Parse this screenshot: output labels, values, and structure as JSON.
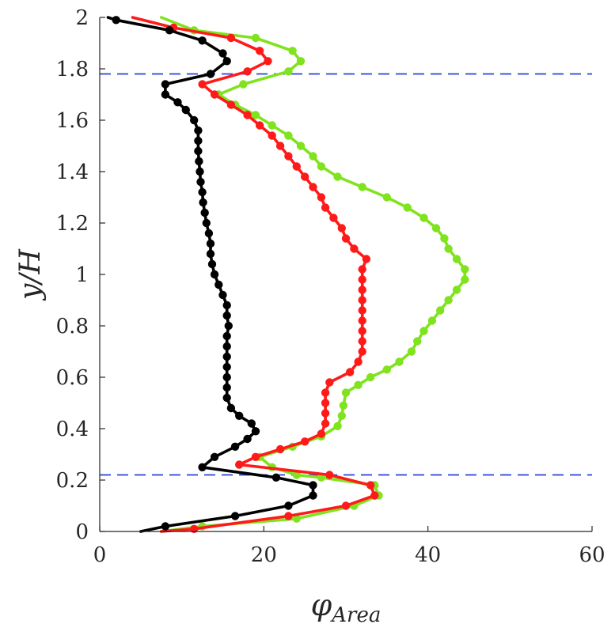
{
  "chart_data": {
    "type": "line",
    "xlabel": "φ",
    "xlabel_sub": "Area",
    "ylabel": "y/H",
    "xlim": [
      0,
      60
    ],
    "ylim": [
      0,
      2
    ],
    "xticks": [
      0,
      20,
      40,
      60
    ],
    "yticks": [
      0,
      0.2,
      0.4,
      0.6,
      0.8,
      1,
      1.2,
      1.4,
      1.6,
      1.8,
      2
    ],
    "xtick_labels": [
      "0",
      "20",
      "40",
      "60"
    ],
    "ytick_labels": [
      "0",
      "0.2",
      "0.4",
      "0.6",
      "0.8",
      "1",
      "1.2",
      "1.4",
      "1.6",
      "1.8",
      "2"
    ],
    "grid": false,
    "reference_lines": [
      {
        "orientation": "horizontal",
        "y": 1.78,
        "style": "dashed",
        "color": "#2b3fd9"
      },
      {
        "orientation": "horizontal",
        "y": 0.22,
        "style": "dashed",
        "color": "#2b3fd9"
      }
    ],
    "series": [
      {
        "color": "#7fe31d",
        "marker": "circle",
        "points": [
          [
            7.5,
            0.0
          ],
          [
            12.5,
            0.02
          ],
          [
            24.0,
            0.05
          ],
          [
            31.0,
            0.1
          ],
          [
            34.0,
            0.14
          ],
          [
            33.5,
            0.18
          ],
          [
            27.0,
            0.21
          ],
          [
            24.0,
            0.22
          ],
          [
            21.0,
            0.25
          ],
          [
            19.5,
            0.29
          ],
          [
            23.5,
            0.33
          ],
          [
            27.0,
            0.37
          ],
          [
            29.0,
            0.41
          ],
          [
            29.5,
            0.45
          ],
          [
            29.7,
            0.49
          ],
          [
            30.0,
            0.54
          ],
          [
            31.5,
            0.57
          ],
          [
            33.0,
            0.6
          ],
          [
            35.0,
            0.63
          ],
          [
            36.5,
            0.66
          ],
          [
            38.0,
            0.7
          ],
          [
            38.7,
            0.74
          ],
          [
            39.5,
            0.78
          ],
          [
            40.5,
            0.82
          ],
          [
            41.5,
            0.86
          ],
          [
            42.5,
            0.9
          ],
          [
            43.5,
            0.94
          ],
          [
            44.5,
            0.98
          ],
          [
            44.5,
            1.02
          ],
          [
            43.5,
            1.06
          ],
          [
            42.5,
            1.1
          ],
          [
            42.0,
            1.14
          ],
          [
            41.0,
            1.18
          ],
          [
            39.5,
            1.22
          ],
          [
            37.5,
            1.26
          ],
          [
            35.0,
            1.3
          ],
          [
            32.0,
            1.34
          ],
          [
            29.0,
            1.38
          ],
          [
            27.0,
            1.42
          ],
          [
            26.0,
            1.46
          ],
          [
            24.5,
            1.5
          ],
          [
            23.0,
            1.54
          ],
          [
            21.0,
            1.58
          ],
          [
            19.0,
            1.62
          ],
          [
            16.5,
            1.66
          ],
          [
            14.5,
            1.7
          ],
          [
            17.5,
            1.74
          ],
          [
            23.0,
            1.79
          ],
          [
            24.5,
            1.83
          ],
          [
            23.5,
            1.87
          ],
          [
            19.0,
            1.92
          ],
          [
            11.5,
            1.95
          ],
          [
            7.5,
            2.0
          ]
        ]
      },
      {
        "color": "#ff1a1a",
        "marker": "circle",
        "points": [
          [
            7.5,
            0.0
          ],
          [
            11.5,
            0.01
          ],
          [
            23.0,
            0.06
          ],
          [
            30.0,
            0.1
          ],
          [
            33.5,
            0.14
          ],
          [
            33.0,
            0.18
          ],
          [
            28.0,
            0.22
          ],
          [
            17.0,
            0.26
          ],
          [
            19.0,
            0.29
          ],
          [
            22.0,
            0.32
          ],
          [
            25.0,
            0.35
          ],
          [
            27.0,
            0.38
          ],
          [
            27.5,
            0.42
          ],
          [
            27.5,
            0.46
          ],
          [
            27.5,
            0.5
          ],
          [
            27.5,
            0.54
          ],
          [
            28.0,
            0.58
          ],
          [
            30.5,
            0.62
          ],
          [
            31.5,
            0.66
          ],
          [
            32.0,
            0.7
          ],
          [
            32.0,
            0.74
          ],
          [
            32.0,
            0.78
          ],
          [
            32.0,
            0.82
          ],
          [
            32.0,
            0.86
          ],
          [
            32.0,
            0.9
          ],
          [
            32.0,
            0.94
          ],
          [
            32.0,
            0.98
          ],
          [
            32.0,
            1.02
          ],
          [
            32.5,
            1.06
          ],
          [
            31.0,
            1.1
          ],
          [
            30.0,
            1.14
          ],
          [
            29.5,
            1.18
          ],
          [
            28.5,
            1.22
          ],
          [
            27.5,
            1.26
          ],
          [
            27.0,
            1.3
          ],
          [
            26.0,
            1.34
          ],
          [
            25.0,
            1.38
          ],
          [
            24.0,
            1.42
          ],
          [
            23.0,
            1.46
          ],
          [
            22.0,
            1.5
          ],
          [
            21.0,
            1.54
          ],
          [
            19.5,
            1.58
          ],
          [
            18.0,
            1.62
          ],
          [
            16.0,
            1.66
          ],
          [
            14.0,
            1.7
          ],
          [
            12.5,
            1.74
          ],
          [
            18.0,
            1.79
          ],
          [
            20.5,
            1.83
          ],
          [
            19.5,
            1.87
          ],
          [
            16.0,
            1.92
          ],
          [
            9.0,
            1.96
          ],
          [
            4.0,
            2.0
          ]
        ]
      },
      {
        "color": "#000000",
        "marker": "circle",
        "points": [
          [
            5.0,
            0.0
          ],
          [
            8.0,
            0.02
          ],
          [
            16.5,
            0.06
          ],
          [
            23.0,
            0.1
          ],
          [
            26.0,
            0.14
          ],
          [
            26.0,
            0.18
          ],
          [
            21.5,
            0.21
          ],
          [
            12.5,
            0.25
          ],
          [
            14.0,
            0.29
          ],
          [
            16.5,
            0.33
          ],
          [
            18.0,
            0.36
          ],
          [
            19.0,
            0.39
          ],
          [
            18.5,
            0.42
          ],
          [
            17.0,
            0.45
          ],
          [
            16.0,
            0.48
          ],
          [
            15.5,
            0.52
          ],
          [
            15.5,
            0.56
          ],
          [
            15.5,
            0.6
          ],
          [
            15.5,
            0.64
          ],
          [
            15.5,
            0.68
          ],
          [
            15.5,
            0.72
          ],
          [
            15.5,
            0.76
          ],
          [
            15.7,
            0.8
          ],
          [
            15.5,
            0.84
          ],
          [
            15.5,
            0.88
          ],
          [
            15.0,
            0.92
          ],
          [
            14.5,
            0.96
          ],
          [
            14.0,
            1.0
          ],
          [
            13.7,
            1.04
          ],
          [
            13.5,
            1.08
          ],
          [
            13.5,
            1.12
          ],
          [
            13.3,
            1.16
          ],
          [
            13.0,
            1.2
          ],
          [
            12.8,
            1.24
          ],
          [
            12.6,
            1.28
          ],
          [
            12.5,
            1.32
          ],
          [
            12.3,
            1.36
          ],
          [
            12.2,
            1.4
          ],
          [
            12.1,
            1.44
          ],
          [
            12.0,
            1.48
          ],
          [
            12.0,
            1.52
          ],
          [
            12.0,
            1.56
          ],
          [
            11.5,
            1.6
          ],
          [
            10.5,
            1.64
          ],
          [
            9.5,
            1.67
          ],
          [
            8.0,
            1.7
          ],
          [
            8.0,
            1.74
          ],
          [
            13.5,
            1.78
          ],
          [
            15.5,
            1.83
          ],
          [
            15.0,
            1.86
          ],
          [
            12.5,
            1.91
          ],
          [
            8.5,
            1.95
          ],
          [
            2.0,
            1.99
          ],
          [
            1.0,
            2.0
          ]
        ]
      }
    ]
  }
}
